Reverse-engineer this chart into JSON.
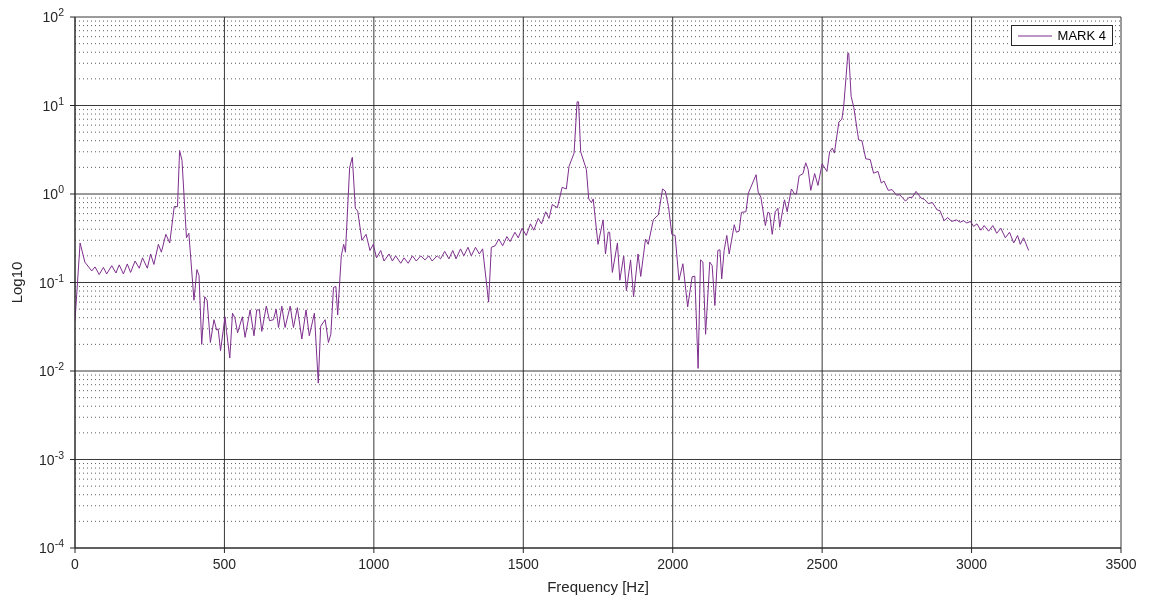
{
  "chart_data": {
    "type": "line",
    "xlabel": "Frequency [Hz]",
    "ylabel": "Log10",
    "xlim": [
      0,
      3500
    ],
    "xticks": [
      0,
      500,
      1000,
      1500,
      2000,
      2500,
      3000,
      3500
    ],
    "ylim": [
      0.0001,
      100
    ],
    "yticks": [
      {
        "value": 0.0001,
        "label": "10$^{-4}$"
      },
      {
        "value": 0.001,
        "label": "10$^{-3}$"
      },
      {
        "value": 0.01,
        "label": "10$^{-2}$"
      },
      {
        "value": 0.1,
        "label": "10$^{-1}$"
      },
      {
        "value": 1,
        "label": "10$^{0}$"
      },
      {
        "value": 10,
        "label": "10$^{1}$"
      },
      {
        "value": 100,
        "label": "10$^{2}$"
      }
    ],
    "log": "y",
    "grid": true,
    "legend": "top right",
    "line_style": "solid",
    "marker": "none",
    "series": [
      {
        "name": "MARK 4",
        "color": "#7e2f8e",
        "x": [
          0,
          17,
          33,
          56,
          67,
          81,
          95,
          106,
          123,
          137,
          148,
          162,
          175,
          186,
          201,
          215,
          226,
          242,
          253,
          264,
          279,
          289,
          304,
          317,
          332,
          343,
          350,
          358,
          373,
          381,
          398,
          408,
          415,
          424,
          434,
          442,
          453,
          465,
          474,
          479,
          487,
          502,
          507,
          518,
          527,
          535,
          544,
          560,
          569,
          586,
          599,
          608,
          617,
          625,
          640,
          651,
          664,
          673,
          681,
          692,
          703,
          720,
          731,
          744,
          759,
          773,
          784,
          801,
          814,
          822,
          837,
          848,
          856,
          865,
          873,
          879,
          891,
          899,
          905,
          919,
          928,
          938,
          946,
          960,
          974,
          987,
          998,
          1009,
          1023,
          1034,
          1051,
          1062,
          1073,
          1090,
          1101,
          1115,
          1129,
          1142,
          1157,
          1171,
          1184,
          1195,
          1212,
          1223,
          1237,
          1251,
          1264,
          1275,
          1290,
          1301,
          1315,
          1326,
          1340,
          1353,
          1364,
          1384,
          1393,
          1406,
          1418,
          1431,
          1445,
          1456,
          1472,
          1483,
          1496,
          1510,
          1524,
          1535,
          1550,
          1561,
          1575,
          1586,
          1597,
          1614,
          1630,
          1644,
          1653,
          1670,
          1680,
          1685,
          1692,
          1711,
          1719,
          1728,
          1734,
          1750,
          1767,
          1775,
          1784,
          1789,
          1798,
          1815,
          1823,
          1836,
          1845,
          1859,
          1869,
          1884,
          1893,
          1909,
          1918,
          1935,
          1944,
          1952,
          1966,
          1975,
          1986,
          1997,
          2008,
          2021,
          2034,
          2050,
          2065,
          2074,
          2085,
          2093,
          2101,
          2110,
          2124,
          2132,
          2141,
          2151,
          2158,
          2164,
          2172,
          2181,
          2189,
          2206,
          2213,
          2222,
          2230,
          2245,
          2253,
          2279,
          2286,
          2295,
          2310,
          2318,
          2324,
          2333,
          2343,
          2352,
          2358,
          2374,
          2383,
          2397,
          2408,
          2414,
          2423,
          2436,
          2445,
          2453,
          2462,
          2475,
          2486,
          2500,
          2516,
          2525,
          2534,
          2541,
          2556,
          2566,
          2572,
          2580,
          2586,
          2589,
          2597,
          2606,
          2622,
          2633,
          2646,
          2661,
          2672,
          2687,
          2698,
          2707,
          2721,
          2734,
          2749,
          2760,
          2779,
          2790,
          2802,
          2814,
          2831,
          2842,
          2855,
          2869,
          2885,
          2894,
          2908,
          2920,
          2934,
          2949,
          2962,
          2973,
          2984,
          2996,
          3007,
          3018,
          3031,
          3042,
          3057,
          3071,
          3084,
          3098,
          3113,
          3127,
          3141,
          3154,
          3163,
          3174,
          3191
        ],
        "values": [
          0.037,
          0.28,
          0.17,
          0.135,
          0.15,
          0.123,
          0.148,
          0.125,
          0.155,
          0.128,
          0.158,
          0.125,
          0.162,
          0.13,
          0.175,
          0.145,
          0.19,
          0.145,
          0.21,
          0.16,
          0.27,
          0.22,
          0.35,
          0.28,
          0.72,
          0.72,
          3.1,
          2.4,
          0.32,
          0.36,
          0.063,
          0.14,
          0.12,
          0.02,
          0.069,
          0.063,
          0.021,
          0.038,
          0.029,
          0.03,
          0.017,
          0.041,
          0.028,
          0.014,
          0.045,
          0.04,
          0.027,
          0.041,
          0.024,
          0.049,
          0.025,
          0.049,
          0.049,
          0.028,
          0.054,
          0.037,
          0.038,
          0.05,
          0.031,
          0.054,
          0.031,
          0.054,
          0.031,
          0.052,
          0.023,
          0.049,
          0.025,
          0.045,
          0.0073,
          0.032,
          0.038,
          0.021,
          0.026,
          0.088,
          0.09,
          0.043,
          0.2,
          0.27,
          0.22,
          2.0,
          2.6,
          0.69,
          0.64,
          0.3,
          0.35,
          0.23,
          0.27,
          0.19,
          0.23,
          0.175,
          0.21,
          0.175,
          0.2,
          0.165,
          0.19,
          0.165,
          0.2,
          0.175,
          0.2,
          0.18,
          0.2,
          0.175,
          0.2,
          0.185,
          0.225,
          0.185,
          0.23,
          0.185,
          0.24,
          0.2,
          0.25,
          0.2,
          0.25,
          0.21,
          0.24,
          0.06,
          0.25,
          0.26,
          0.31,
          0.26,
          0.33,
          0.29,
          0.37,
          0.32,
          0.41,
          0.34,
          0.46,
          0.39,
          0.53,
          0.46,
          0.63,
          0.53,
          0.76,
          0.7,
          1.19,
          1.14,
          2.05,
          2.9,
          11,
          11,
          3.0,
          1.9,
          0.88,
          0.8,
          0.88,
          0.27,
          0.51,
          0.21,
          0.37,
          0.37,
          0.13,
          0.28,
          0.106,
          0.2,
          0.081,
          0.18,
          0.069,
          0.21,
          0.117,
          0.31,
          0.27,
          0.51,
          0.55,
          0.58,
          1.14,
          1.08,
          0.72,
          0.35,
          0.34,
          0.106,
          0.163,
          0.053,
          0.116,
          0.118,
          0.0107,
          0.18,
          0.17,
          0.026,
          0.17,
          0.155,
          0.055,
          0.23,
          0.235,
          0.11,
          0.23,
          0.34,
          0.21,
          0.45,
          0.37,
          0.38,
          0.62,
          0.63,
          1.02,
          1.65,
          1.05,
          0.92,
          0.44,
          0.62,
          0.61,
          0.35,
          0.63,
          0.69,
          0.42,
          0.86,
          0.63,
          1.14,
          1.0,
          1.0,
          1.6,
          1.7,
          2.25,
          1.9,
          1.1,
          1.7,
          1.25,
          2.2,
          1.8,
          3.0,
          3.3,
          2.9,
          6.5,
          7.0,
          9.7,
          21,
          39,
          39,
          12.7,
          9.5,
          4.1,
          4.0,
          2.5,
          2.45,
          1.72,
          1.8,
          1.33,
          1.4,
          1.1,
          1.12,
          0.97,
          0.98,
          0.83,
          0.91,
          0.92,
          1.07,
          0.9,
          0.87,
          0.78,
          0.8,
          0.66,
          0.65,
          0.5,
          0.54,
          0.49,
          0.51,
          0.48,
          0.5,
          0.47,
          0.49,
          0.43,
          0.46,
          0.39,
          0.44,
          0.38,
          0.44,
          0.36,
          0.41,
          0.32,
          0.37,
          0.28,
          0.34,
          0.27,
          0.32,
          0.23
        ]
      }
    ]
  }
}
